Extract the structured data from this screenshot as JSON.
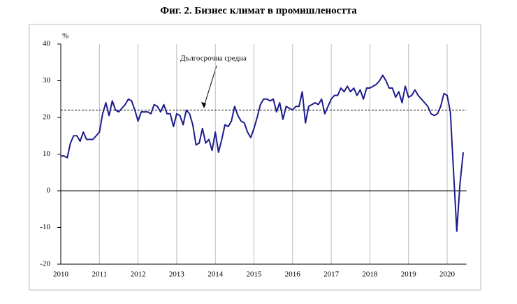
{
  "chart_data": {
    "type": "line",
    "title": "Фиг. 2. Бизнес климат в промишлеността",
    "y_label": "%",
    "annotation": "Дългосрочна средна",
    "long_term_average": 22,
    "categories": [
      "2010",
      null,
      null,
      null,
      null,
      null,
      null,
      null,
      null,
      null,
      null,
      null,
      "2011",
      null,
      null,
      null,
      null,
      null,
      null,
      null,
      null,
      null,
      null,
      null,
      "2012",
      null,
      null,
      null,
      null,
      null,
      null,
      null,
      null,
      null,
      null,
      null,
      "2013",
      null,
      null,
      null,
      null,
      null,
      null,
      null,
      null,
      null,
      null,
      null,
      "2014",
      null,
      null,
      null,
      null,
      null,
      null,
      null,
      null,
      null,
      null,
      null,
      "2015",
      null,
      null,
      null,
      null,
      null,
      null,
      null,
      null,
      null,
      null,
      null,
      "2016",
      null,
      null,
      null,
      null,
      null,
      null,
      null,
      null,
      null,
      null,
      null,
      "2017",
      null,
      null,
      null,
      null,
      null,
      null,
      null,
      null,
      null,
      null,
      null,
      "2018",
      null,
      null,
      null,
      null,
      null,
      null,
      null,
      null,
      null,
      null,
      null,
      "2019",
      null,
      null,
      null,
      null,
      null,
      null,
      null,
      null,
      null,
      null,
      null,
      "2020",
      null,
      null,
      null,
      null,
      null
    ],
    "series": [
      {
        "color": "#1c1c8c",
        "values": [
          9.5,
          9.5,
          9,
          13,
          15,
          15,
          13.5,
          16,
          14,
          14,
          14,
          15,
          16,
          21,
          24,
          20.5,
          24.5,
          22,
          21.5,
          22.5,
          23.5,
          25,
          24.5,
          22,
          19,
          21.5,
          21.5,
          21.5,
          21,
          23.5,
          23,
          21.5,
          23.5,
          21,
          21,
          17.5,
          21,
          20.5,
          18,
          22,
          21,
          18,
          12.5,
          13,
          17,
          13,
          14,
          11,
          16,
          10.5,
          14,
          18,
          17.5,
          19,
          23,
          20.5,
          19,
          18.5,
          16,
          14.5,
          17,
          20,
          23.5,
          25,
          25,
          24.5,
          25,
          21.5,
          24,
          19.5,
          23,
          22.5,
          22,
          23,
          23,
          27,
          18.5,
          23,
          23.5,
          24,
          23.5,
          25,
          21,
          23,
          25,
          26,
          26,
          28,
          27,
          28.5,
          27,
          28,
          26,
          27.5,
          25,
          28,
          28,
          28.5,
          29,
          30,
          31.5,
          30,
          28,
          28,
          25.5,
          27,
          24,
          28.5,
          25.5,
          26,
          27.5,
          26,
          25,
          24,
          23,
          21,
          20.5,
          21,
          23,
          26.5,
          26,
          21.5,
          5,
          -11,
          2,
          10.5
        ]
      }
    ],
    "ylim": [
      -20,
      40
    ],
    "yticks": [
      -20,
      -10,
      0,
      10,
      20,
      30,
      40
    ],
    "grid": true
  }
}
